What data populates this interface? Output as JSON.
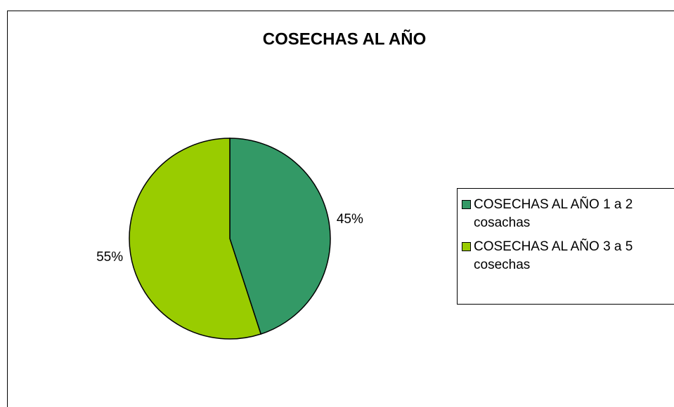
{
  "chart_data": {
    "type": "pie",
    "title": "COSECHAS AL AÑO",
    "categories": [
      "COSECHAS AL AÑO 1 a 2 cosachas",
      "COSECHAS AL AÑO 3 a 5 cosechas"
    ],
    "values": [
      45,
      55
    ],
    "value_labels": [
      "45%",
      "55%"
    ],
    "colors": [
      "#339966",
      "#99cc00"
    ],
    "legend": "right"
  }
}
